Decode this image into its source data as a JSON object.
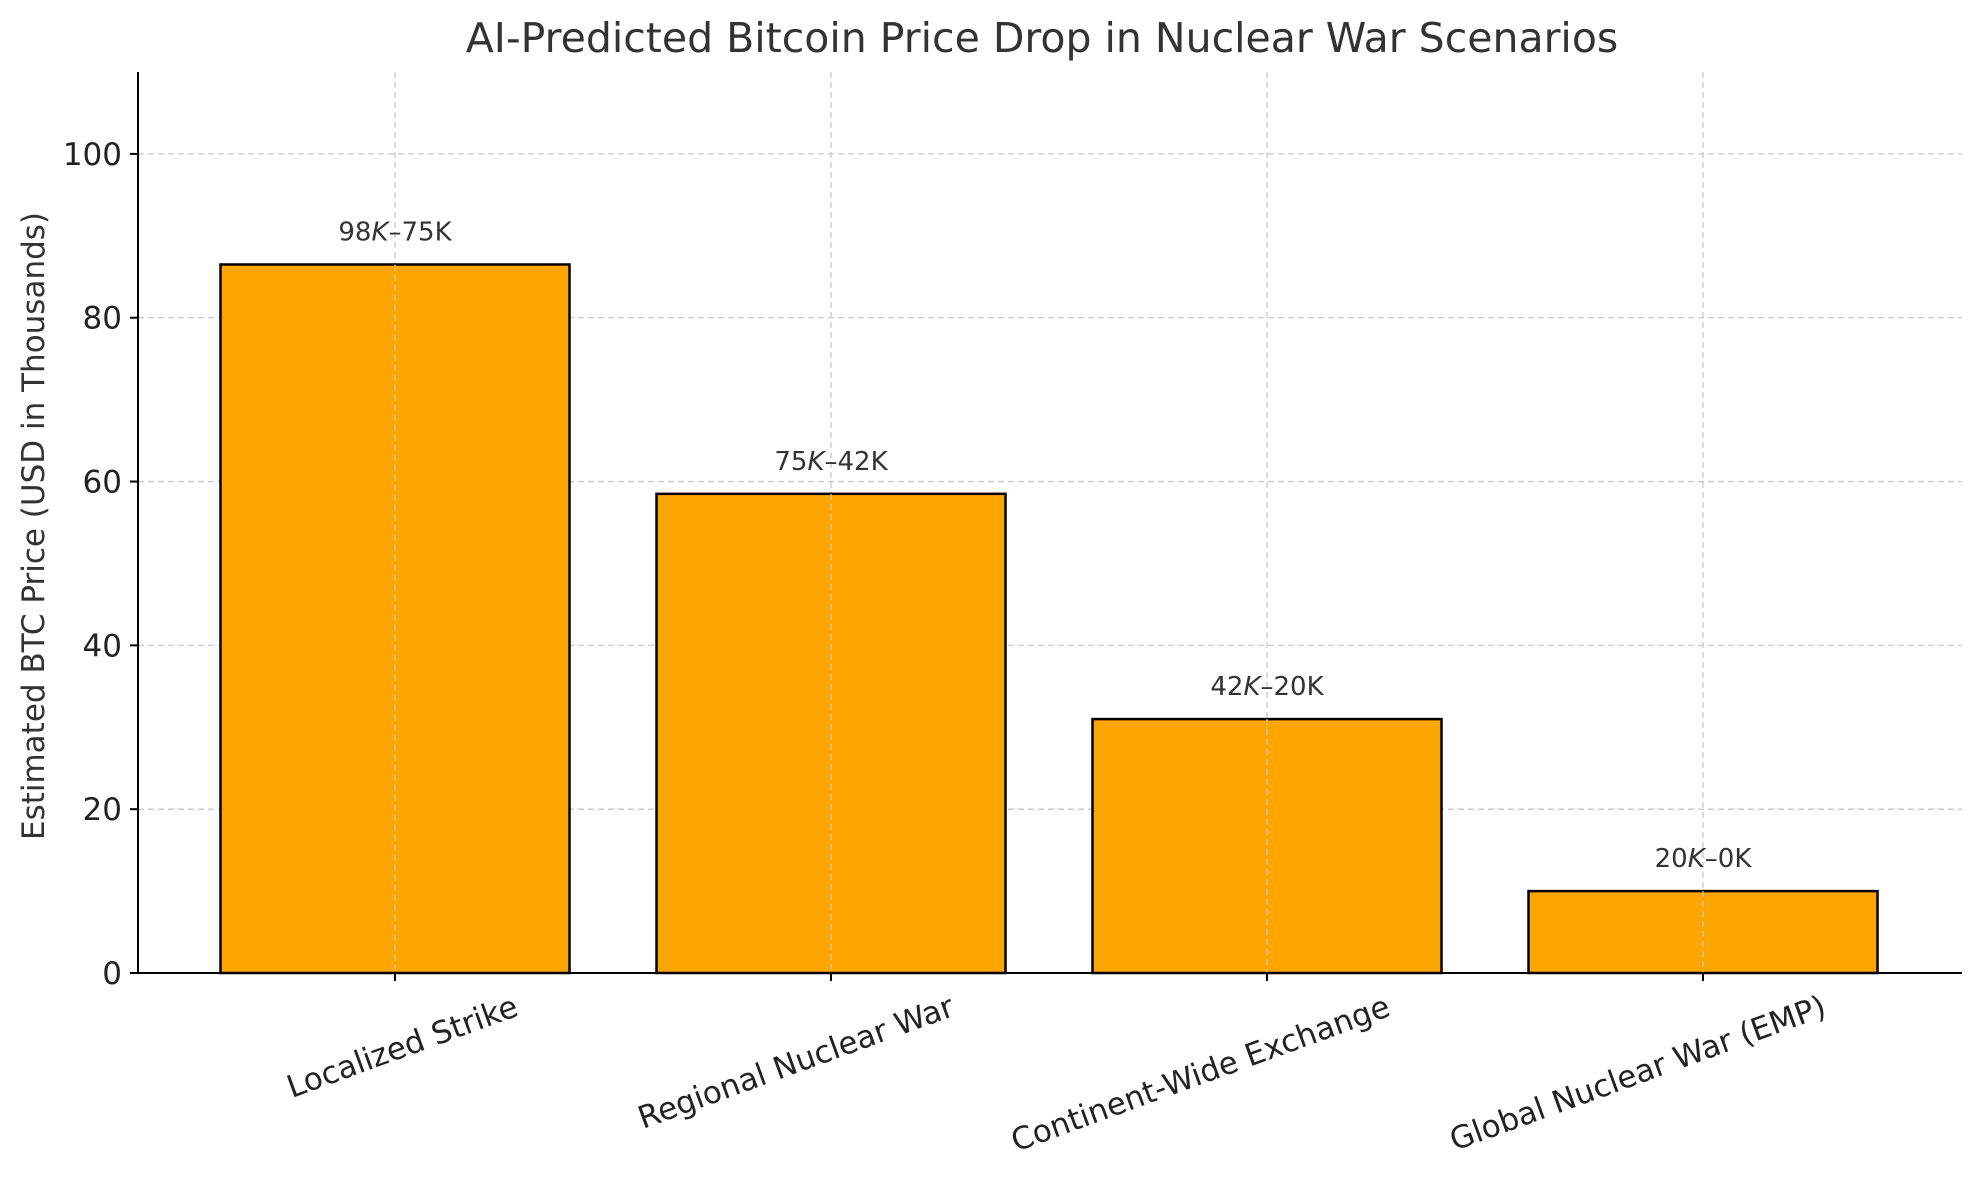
{
  "chart_data": {
    "type": "bar",
    "title": "AI-Predicted Bitcoin Price Drop in Nuclear War Scenarios",
    "xlabel": "",
    "ylabel": "Estimated BTC Price (USD in Thousands)",
    "ylim": [
      0,
      110
    ],
    "yticks": [
      0,
      20,
      40,
      60,
      80,
      100
    ],
    "grid": true,
    "categories": [
      "Localized Strike",
      "Regional Nuclear War",
      "Continent-Wide Exchange",
      "Global Nuclear War (EMP)"
    ],
    "values": [
      86.5,
      58.5,
      31,
      10
    ],
    "bar_labels": [
      {
        "a": "98",
        "k": "K",
        "b": "–75K"
      },
      {
        "a": "75",
        "k": "K",
        "b": "–42K"
      },
      {
        "a": "42",
        "k": "K",
        "b": "–20K"
      },
      {
        "a": "20",
        "k": "K",
        "b": "–0K"
      }
    ],
    "colors": {
      "bar_fill": "#FFA500",
      "bar_edge": "#000000",
      "grid": "#c8c8c8",
      "text": "#333333",
      "tick_text": "#222222"
    }
  }
}
